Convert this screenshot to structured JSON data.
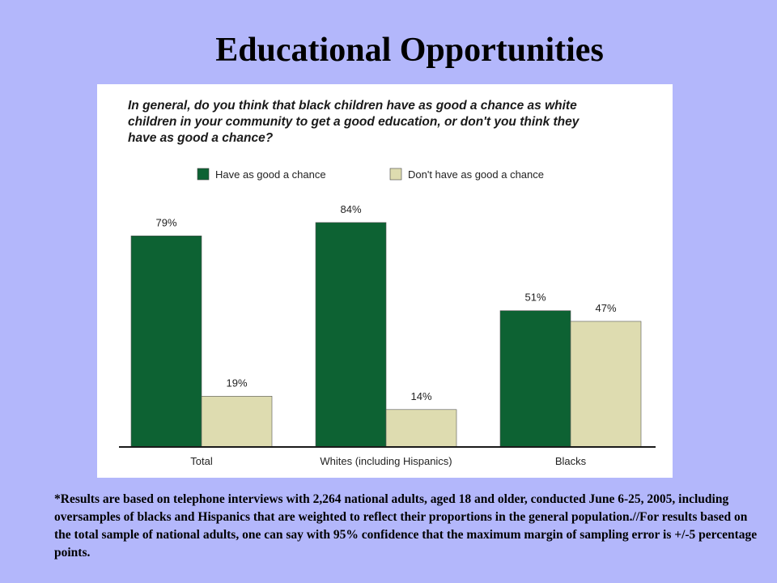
{
  "slide": {
    "title": "Educational Opportunities",
    "footnote": "*Results are based on telephone interviews with 2,264 national adults, aged 18 and older, conducted June 6-25, 2005, including oversamples of blacks and Hispanics that are weighted to reflect their proportions in the general population.//For results based on the total sample of national adults, one can say with 95% confidence that the maximum margin of sampling error is +/-5 percentage points."
  },
  "chart_data": {
    "type": "bar",
    "question_lines": [
      "In general, do you think that black children have as good a chance as white",
      "children in your community to get a good education, or don't you think they",
      "have as good a chance?"
    ],
    "categories": [
      "Total",
      "Whites (including Hispanics)",
      "Blacks"
    ],
    "series": [
      {
        "name": "Have as good a chance",
        "values": [
          79,
          84,
          51
        ],
        "labels": [
          "79%",
          "84%",
          "51%"
        ],
        "color": "#0d6233"
      },
      {
        "name": "Don't have as good a chance",
        "values": [
          19,
          14,
          47
        ],
        "labels": [
          "19%",
          "14%",
          "47%"
        ],
        "color": "#dedcb0"
      }
    ],
    "ylim": [
      0,
      100
    ],
    "grid": false,
    "legend_position": "top"
  }
}
